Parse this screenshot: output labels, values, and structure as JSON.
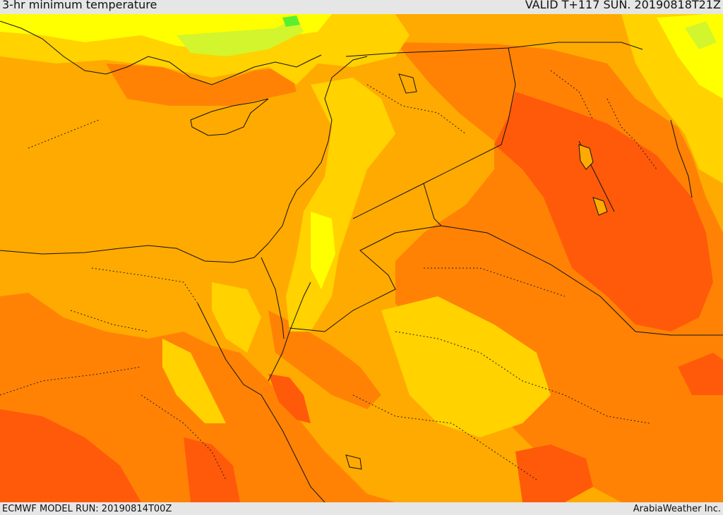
{
  "header": {
    "title": "3-hr minimum temperature",
    "valid": "VALID T+117 SUN. 20190818T21Z"
  },
  "footer": {
    "model_run": "ECMWF MODEL RUN: 20190814T00Z",
    "credit": "ArabiaWeather Inc."
  },
  "colors": {
    "very_hot": "#ff5a0a",
    "hot": "#ff8205",
    "warm": "#ffaa00",
    "mild": "#ffd200",
    "cool": "#ffff00",
    "cooler": "#d2f52d",
    "cold": "#5af030"
  }
}
